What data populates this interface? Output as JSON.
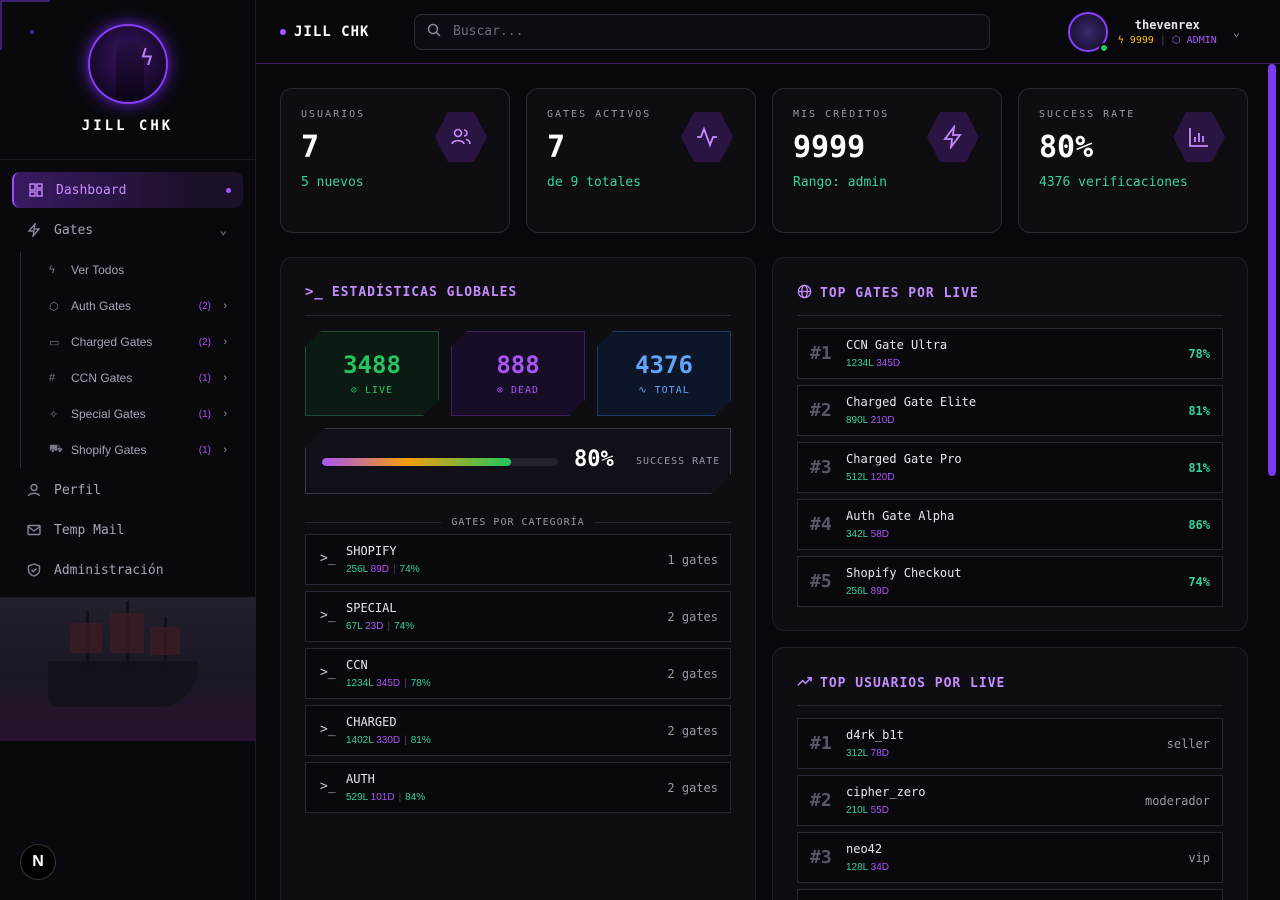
{
  "brand": {
    "name": "JILL CHK"
  },
  "sidebar": {
    "dashboard": "Dashboard",
    "gates": "Gates",
    "gate_items": [
      {
        "label": "Ver Todos",
        "icon": "zap-icon",
        "count": ""
      },
      {
        "label": "Auth Gates",
        "icon": "shield-icon",
        "count": "(2)"
      },
      {
        "label": "Charged Gates",
        "icon": "card-icon",
        "count": "(2)"
      },
      {
        "label": "CCN Gates",
        "icon": "hash-icon",
        "count": "(1)"
      },
      {
        "label": "Special Gates",
        "icon": "sparkles-icon",
        "count": "(1)"
      },
      {
        "label": "Shopify Gates",
        "icon": "cart-icon",
        "count": "(1)"
      }
    ],
    "perfil": "Perfil",
    "temp_mail": "Temp Mail",
    "admin": "Administración"
  },
  "header": {
    "title": "JILL CHK",
    "search_placeholder": "Buscar...",
    "username": "thevenrex",
    "credits": "9999",
    "role": "ADMIN"
  },
  "stats": [
    {
      "label": "USUARIOS",
      "value": "7",
      "sub": "5 nuevos",
      "icon": "users-icon"
    },
    {
      "label": "GATES ACTIVOS",
      "value": "7",
      "sub": "de 9 totales",
      "icon": "activity-icon"
    },
    {
      "label": "MIS CRÉDITOS",
      "value": "9999",
      "sub": "Rango: admin",
      "icon": "zap-icon"
    },
    {
      "label": "SUCCESS RATE",
      "value": "80%",
      "sub": "4376 verificaciones",
      "icon": "bar-chart-icon"
    }
  ],
  "global": {
    "title": "ESTADÍSTICAS GLOBALES",
    "live": "3488",
    "live_label": "LIVE",
    "dead": "888",
    "dead_label": "DEAD",
    "total": "4376",
    "total_label": "TOTAL",
    "success_pct": "80%",
    "success_fraction": 0.8,
    "success_label": "SUCCESS RATE",
    "category_title": "GATES POR CATEGORÍA",
    "categories": [
      {
        "name": "SHOPIFY",
        "live": "256L",
        "dead": "89D",
        "pct": "74%",
        "gates": "1 gates"
      },
      {
        "name": "SPECIAL",
        "live": "67L",
        "dead": "23D",
        "pct": "74%",
        "gates": "2 gates"
      },
      {
        "name": "CCN",
        "live": "1234L",
        "dead": "345D",
        "pct": "78%",
        "gates": "2 gates"
      },
      {
        "name": "CHARGED",
        "live": "1402L",
        "dead": "330D",
        "pct": "81%",
        "gates": "2 gates"
      },
      {
        "name": "AUTH",
        "live": "529L",
        "dead": "101D",
        "pct": "84%",
        "gates": "2 gates"
      }
    ]
  },
  "top_gates": {
    "title": "TOP GATES POR LIVE",
    "items": [
      {
        "rank": "#1",
        "name": "CCN Gate Ultra",
        "live": "1234L",
        "dead": "345D",
        "pct": "78%"
      },
      {
        "rank": "#2",
        "name": "Charged Gate Elite",
        "live": "890L",
        "dead": "210D",
        "pct": "81%"
      },
      {
        "rank": "#3",
        "name": "Charged Gate Pro",
        "live": "512L",
        "dead": "120D",
        "pct": "81%"
      },
      {
        "rank": "#4",
        "name": "Auth Gate Alpha",
        "live": "342L",
        "dead": "58D",
        "pct": "86%"
      },
      {
        "rank": "#5",
        "name": "Shopify Checkout",
        "live": "256L",
        "dead": "89D",
        "pct": "74%"
      }
    ]
  },
  "top_users": {
    "title": "TOP USUARIOS POR LIVE",
    "items": [
      {
        "rank": "#1",
        "name": "d4rk_b1t",
        "live": "312L",
        "dead": "78D",
        "role": "seller"
      },
      {
        "rank": "#2",
        "name": "cipher_zero",
        "live": "210L",
        "dead": "55D",
        "role": "moderador"
      },
      {
        "rank": "#3",
        "name": "neo42",
        "live": "128L",
        "dead": "34D",
        "role": "vip"
      }
    ]
  },
  "colors": {
    "accent": "#a855f7",
    "live": "#22c55e",
    "dead": "#a855f7",
    "total": "#60a5fa"
  }
}
